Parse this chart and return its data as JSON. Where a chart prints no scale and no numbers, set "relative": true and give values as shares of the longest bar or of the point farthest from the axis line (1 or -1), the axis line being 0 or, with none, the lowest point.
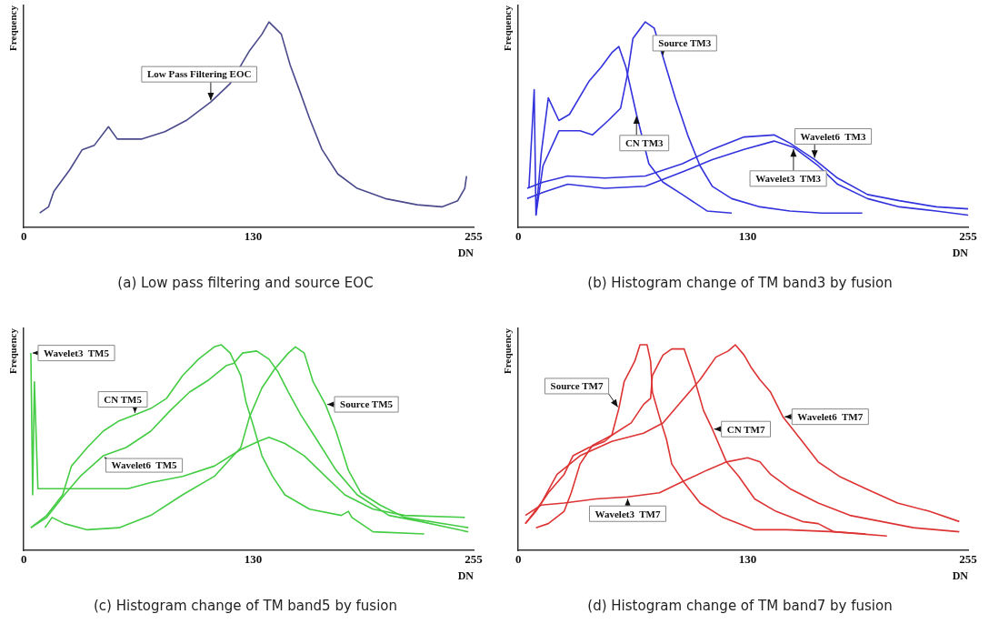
{
  "chart_data": [
    {
      "type": "line",
      "title": "(a) Low pass filtering and source EOC",
      "xlabel": "DN",
      "ylabel": "Frequency",
      "relative": true,
      "xlim": [
        0,
        255
      ],
      "xticks": [
        0,
        130,
        255
      ],
      "series": [
        {
          "name": "Low Pass Filtering EOC",
          "color": "#4a4a8c",
          "x": [
            9,
            14,
            17,
            26,
            33,
            40,
            48,
            53,
            67,
            80,
            92,
            106,
            117,
            128,
            135,
            139,
            146,
            151,
            157,
            162,
            169,
            178,
            189,
            205,
            223,
            237,
            246,
            250,
            251
          ],
          "values": [
            0.07,
            0.1,
            0.175,
            0.28,
            0.377,
            0.4,
            0.49,
            0.43,
            0.43,
            0.466,
            0.52,
            0.61,
            0.7,
            0.86,
            0.94,
            1,
            0.94,
            0.79,
            0.65,
            0.53,
            0.38,
            0.26,
            0.19,
            0.14,
            0.11,
            0.1,
            0.13,
            0.19,
            0.25
          ]
        }
      ]
    },
    {
      "type": "line",
      "title": "(b) Histogram change of TM band3 by fusion",
      "xlabel": "DN",
      "ylabel": "Frequency",
      "relative": true,
      "xlim": [
        0,
        255
      ],
      "xticks": [
        0,
        130,
        255
      ],
      "series": [
        {
          "name": "Source TM3",
          "color": "#3333dd",
          "x": [
            10,
            14,
            23,
            35,
            42,
            51,
            58,
            62,
            65,
            72,
            77,
            82,
            89,
            96,
            103,
            110,
            121,
            137,
            154,
            172,
            195
          ],
          "values": [
            0.06,
            0.3,
            0.47,
            0.47,
            0.45,
            0.52,
            0.58,
            0.75,
            0.92,
            1,
            0.97,
            0.83,
            0.63,
            0.45,
            0.3,
            0.2,
            0.14,
            0.1,
            0.08,
            0.07,
            0.07
          ]
        },
        {
          "name": "CN TM3",
          "color": "#3333dd",
          "x": [
            6,
            9,
            10,
            13,
            17,
            23,
            29,
            40,
            47,
            53,
            57,
            61,
            67,
            74,
            82,
            93,
            107,
            121
          ],
          "values": [
            0.19,
            0.67,
            0.06,
            0.36,
            0.63,
            0.52,
            0.55,
            0.71,
            0.78,
            0.85,
            0.88,
            0.78,
            0.55,
            0.31,
            0.22,
            0.16,
            0.08,
            0.07
          ]
        },
        {
          "name": "Wavelet6  TM3",
          "color": "#3333dd",
          "x": [
            5,
            14,
            28,
            49,
            72,
            93,
            110,
            128,
            145,
            154,
            168,
            181,
            198,
            216,
            237,
            255
          ],
          "values": [
            0.19,
            0.22,
            0.25,
            0.24,
            0.25,
            0.31,
            0.38,
            0.44,
            0.45,
            0.41,
            0.33,
            0.24,
            0.16,
            0.13,
            0.1,
            0.09
          ]
        },
        {
          "name": "Wavelet3  TM3",
          "color": "#3333dd",
          "x": [
            5,
            14,
            28,
            49,
            72,
            93,
            110,
            128,
            145,
            156,
            170,
            181,
            198,
            216,
            237,
            255
          ],
          "values": [
            0.14,
            0.17,
            0.21,
            0.19,
            0.2,
            0.27,
            0.33,
            0.38,
            0.42,
            0.39,
            0.3,
            0.21,
            0.14,
            0.1,
            0.08,
            0.06
          ]
        }
      ]
    },
    {
      "type": "line",
      "title": "(c) Histogram change of TM band5 by fusion",
      "xlabel": "DN",
      "ylabel": "Frequency",
      "relative": true,
      "xlim": [
        0,
        255
      ],
      "xticks": [
        0,
        130,
        255
      ],
      "series": [
        {
          "name": "CN TM5",
          "color": "#44cc44",
          "x": [
            4,
            13,
            22,
            27,
            36,
            45,
            54,
            63,
            72,
            81,
            90,
            99,
            108,
            112,
            117,
            123,
            126,
            130,
            135,
            141,
            148,
            162,
            180,
            184,
            186,
            198,
            227
          ],
          "values": [
            0.11,
            0.17,
            0.27,
            0.41,
            0.5,
            0.58,
            0.63,
            0.66,
            0.69,
            0.74,
            0.85,
            0.93,
            0.99,
            1,
            0.96,
            0.85,
            0.72,
            0.61,
            0.46,
            0.36,
            0.27,
            0.2,
            0.17,
            0.19,
            0.16,
            0.09,
            0.08
          ]
        },
        {
          "name": "Wavelet6  TM5",
          "color": "#44cc44",
          "x": [
            4,
            13,
            23,
            32,
            45,
            58,
            72,
            83,
            94,
            105,
            115,
            119,
            124,
            132,
            139,
            144,
            150,
            157,
            166,
            177,
            189,
            207,
            225,
            252
          ],
          "values": [
            0.11,
            0.16,
            0.27,
            0.36,
            0.46,
            0.5,
            0.58,
            0.68,
            0.77,
            0.83,
            0.9,
            0.91,
            0.96,
            0.97,
            0.93,
            0.87,
            0.77,
            0.66,
            0.54,
            0.39,
            0.27,
            0.17,
            0.14,
            0.09
          ]
        },
        {
          "name": "Source TM5",
          "color": "#44cc44",
          "x": [
            12,
            16,
            23,
            36,
            54,
            72,
            90,
            108,
            123,
            128,
            135,
            142,
            150,
            154,
            159,
            164,
            171,
            177,
            184,
            191,
            202,
            216,
            252
          ],
          "values": [
            0.11,
            0.16,
            0.13,
            0.1,
            0.11,
            0.17,
            0.27,
            0.36,
            0.5,
            0.65,
            0.79,
            0.88,
            0.96,
            0.99,
            0.96,
            0.82,
            0.71,
            0.58,
            0.39,
            0.28,
            0.22,
            0.16,
            0.11
          ]
        },
        {
          "name": "Wavelet3  TM5",
          "color": "#44cc44",
          "x": [
            4,
            5,
            6,
            8,
            18,
            29,
            41,
            59,
            72,
            90,
            108,
            123,
            133,
            139,
            148,
            159,
            171,
            182,
            198,
            216,
            250
          ],
          "values": [
            0.96,
            0.27,
            0.82,
            0.3,
            0.3,
            0.3,
            0.3,
            0.3,
            0.33,
            0.36,
            0.41,
            0.49,
            0.53,
            0.55,
            0.52,
            0.46,
            0.36,
            0.27,
            0.2,
            0.17,
            0.16
          ]
        }
      ]
    },
    {
      "type": "line",
      "title": "(d) Histogram change of TM band7 by fusion",
      "xlabel": "DN",
      "ylabel": "Frequency",
      "relative": true,
      "xlim": [
        0,
        255
      ],
      "xticks": [
        0,
        130,
        255
      ],
      "series": [
        {
          "name": "Source TM7",
          "color": "#dd3333",
          "x": [
            4,
            10,
            17,
            26,
            31,
            40,
            49,
            53,
            57,
            60,
            66,
            69,
            73,
            75,
            76,
            80,
            84,
            87,
            94,
            103,
            116,
            134,
            152,
            179,
            209
          ],
          "values": [
            0.13,
            0.19,
            0.28,
            0.37,
            0.46,
            0.5,
            0.53,
            0.56,
            0.69,
            0.82,
            0.92,
            1,
            1,
            0.92,
            0.77,
            0.65,
            0.54,
            0.42,
            0.33,
            0.23,
            0.16,
            0.1,
            0.1,
            0.09,
            0.07
          ]
        },
        {
          "name": "CN TM7",
          "color": "#dd3333",
          "x": [
            10,
            17,
            26,
            30,
            35,
            42,
            53,
            64,
            71,
            75,
            76,
            82,
            87,
            94,
            100,
            105,
            110,
            118,
            125,
            134,
            146,
            161,
            170,
            179,
            197
          ],
          "values": [
            0.11,
            0.13,
            0.19,
            0.28,
            0.42,
            0.51,
            0.56,
            0.62,
            0.71,
            0.74,
            0.85,
            0.95,
            0.98,
            0.98,
            0.83,
            0.68,
            0.59,
            0.43,
            0.36,
            0.25,
            0.19,
            0.14,
            0.13,
            0.09,
            0.08
          ]
        },
        {
          "name": "Wavelet6  TM7",
          "color": "#dd3333",
          "x": [
            4,
            13,
            22,
            35,
            53,
            71,
            82,
            92,
            103,
            112,
            119,
            123,
            128,
            132,
            137,
            143,
            150,
            161,
            170,
            182,
            197,
            215,
            233,
            250
          ],
          "values": [
            0.13,
            0.23,
            0.37,
            0.46,
            0.53,
            0.57,
            0.62,
            0.72,
            0.83,
            0.94,
            0.97,
            1,
            0.95,
            0.89,
            0.83,
            0.77,
            0.65,
            0.53,
            0.43,
            0.36,
            0.3,
            0.23,
            0.19,
            0.14
          ]
        },
        {
          "name": "Wavelet3  TM7",
          "color": "#dd3333",
          "x": [
            4,
            13,
            26,
            44,
            62,
            80,
            92,
            107,
            118,
            130,
            137,
            143,
            154,
            170,
            188,
            206,
            224,
            250
          ],
          "values": [
            0.17,
            0.22,
            0.23,
            0.25,
            0.26,
            0.28,
            0.33,
            0.39,
            0.43,
            0.45,
            0.43,
            0.37,
            0.3,
            0.23,
            0.17,
            0.14,
            0.11,
            0.09
          ]
        }
      ]
    }
  ]
}
